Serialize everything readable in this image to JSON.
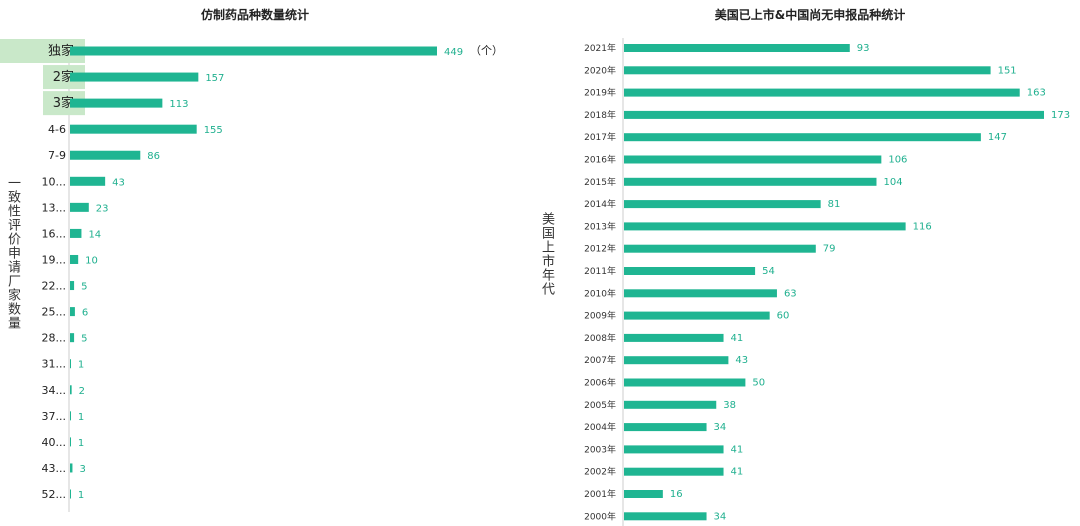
{
  "colors": {
    "bar": "#1fb592",
    "value_label": "#20b08f",
    "highlight": "#c9e8c9",
    "axis": "#cccccc"
  },
  "chart_data": [
    {
      "type": "bar",
      "orientation": "horizontal",
      "title": "仿制药品种数量统计",
      "ylabel": "一致性评价申请厂家数量",
      "unit_label": "（个）",
      "categories": [
        "独家",
        "2家",
        "3家",
        "4-6",
        "7-9",
        "10...",
        "13...",
        "16...",
        "19...",
        "22...",
        "25...",
        "28...",
        "31...",
        "34...",
        "37...",
        "40...",
        "43...",
        "52..."
      ],
      "values": [
        449,
        157,
        113,
        155,
        86,
        43,
        23,
        14,
        10,
        5,
        6,
        5,
        1,
        2,
        1,
        1,
        3,
        1
      ],
      "highlighted_categories": [
        "独家",
        "2家",
        "3家"
      ],
      "xlim": [
        0,
        449
      ],
      "grid": false,
      "legend": "none"
    },
    {
      "type": "bar",
      "orientation": "horizontal",
      "title": "美国已上市&中国尚无申报品种统计",
      "ylabel": "美国上市年代",
      "categories": [
        "2021年",
        "2020年",
        "2019年",
        "2018年",
        "2017年",
        "2016年",
        "2015年",
        "2014年",
        "2013年",
        "2012年",
        "2011年",
        "2010年",
        "2009年",
        "2008年",
        "2007年",
        "2006年",
        "2005年",
        "2004年",
        "2003年",
        "2002年",
        "2001年",
        "2000年"
      ],
      "values": [
        93,
        151,
        163,
        173,
        147,
        106,
        104,
        81,
        116,
        79,
        54,
        63,
        60,
        41,
        43,
        50,
        38,
        34,
        41,
        41,
        16,
        34
      ],
      "xlim": [
        0,
        173
      ],
      "grid": false,
      "legend": "none"
    }
  ]
}
